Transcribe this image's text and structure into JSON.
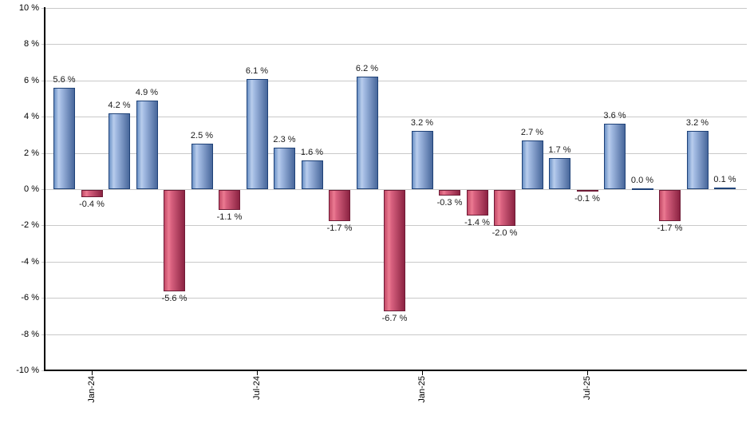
{
  "chart_data": {
    "type": "bar",
    "title": "",
    "xlabel": "",
    "ylabel": "",
    "ylim": [
      -10,
      10
    ],
    "grid": true,
    "legend_position": "none",
    "values": [
      5.6,
      -0.4,
      4.2,
      4.9,
      -5.6,
      2.5,
      -1.1,
      6.1,
      2.3,
      1.6,
      -1.7,
      6.2,
      -6.7,
      3.2,
      -0.3,
      -1.4,
      -2.0,
      2.7,
      1.7,
      -0.1,
      3.6,
      0.0,
      -1.7,
      3.2,
      0.1
    ],
    "bar_value_labels": [
      "5.6 %",
      "-0.4 %",
      "4.2 %",
      "4.9 %",
      "-5.6 %",
      "2.5 %",
      "-1.1 %",
      "6.1 %",
      "2.3 %",
      "1.6 %",
      "-1.7 %",
      "6.2 %",
      "-6.7 %",
      "3.2 %",
      "-0.3 %",
      "-1.4 %",
      "-2.0 %",
      "2.7 %",
      "1.7 %",
      "-0.1 %",
      "3.6 %",
      "0.0 %",
      "-1.7 %",
      "3.2 %",
      "0.1 %"
    ],
    "x_ticks": [
      {
        "bar_index": 1,
        "label": "Jan-24"
      },
      {
        "bar_index": 7,
        "label": "Jul-24"
      },
      {
        "bar_index": 13,
        "label": "Jan-25"
      },
      {
        "bar_index": 19,
        "label": "Jul-25"
      }
    ],
    "y_ticks": [
      {
        "value": 10,
        "label": "10 %"
      },
      {
        "value": 8,
        "label": "8 %"
      },
      {
        "value": 6,
        "label": "6 %"
      },
      {
        "value": 4,
        "label": "4 %"
      },
      {
        "value": 2,
        "label": "2 %"
      },
      {
        "value": 0,
        "label": "0 %"
      },
      {
        "value": -2,
        "label": "-2 %"
      },
      {
        "value": -4,
        "label": "-4 %"
      },
      {
        "value": -6,
        "label": "-6 %"
      },
      {
        "value": -8,
        "label": "-8 %"
      },
      {
        "value": -10,
        "label": "-10 %"
      }
    ],
    "colors": {
      "positive_fill_light": "#b9cdec",
      "positive_fill_dark": "#48679b",
      "positive_border": "#1f4278",
      "negative_fill_light": "#ec7b92",
      "negative_fill_dark": "#8b2342",
      "negative_border": "#6f1b36",
      "gridline": "#c9c9c9",
      "axis": "#000000",
      "label_text": "#1a1a1a",
      "background": "#ffffff"
    }
  }
}
